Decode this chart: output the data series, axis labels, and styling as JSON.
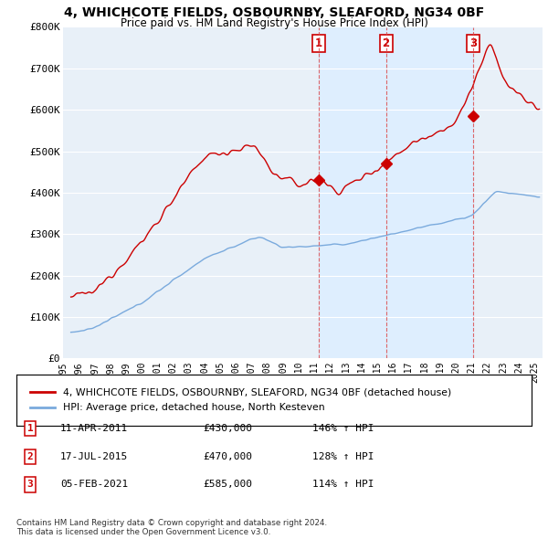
{
  "title_line1": "4, WHICHCOTE FIELDS, OSBOURNBY, SLEAFORD, NG34 0BF",
  "title_line2": "Price paid vs. HM Land Registry's House Price Index (HPI)",
  "ylim": [
    0,
    800000
  ],
  "yticks": [
    0,
    100000,
    200000,
    300000,
    400000,
    500000,
    600000,
    700000,
    800000
  ],
  "ytick_labels": [
    "£0",
    "£100K",
    "£200K",
    "£300K",
    "£400K",
    "£500K",
    "£600K",
    "£700K",
    "£800K"
  ],
  "xlim_start": 1995.3,
  "xlim_end": 2025.5,
  "sales": [
    {
      "num": 1,
      "date": "11-APR-2011",
      "price": 430000,
      "pct": "146%",
      "x": 2011.28
    },
    {
      "num": 2,
      "date": "17-JUL-2015",
      "price": 470000,
      "pct": "128%",
      "x": 2015.54
    },
    {
      "num": 3,
      "date": "05-FEB-2021",
      "price": 585000,
      "pct": "114%",
      "x": 2021.1
    }
  ],
  "legend_red": "4, WHICHCOTE FIELDS, OSBOURNBY, SLEAFORD, NG34 0BF (detached house)",
  "legend_blue": "HPI: Average price, detached house, North Kesteven",
  "footnote": "Contains HM Land Registry data © Crown copyright and database right 2024.\nThis data is licensed under the Open Government Licence v3.0.",
  "red_color": "#cc0000",
  "blue_color": "#7aaadd",
  "shade_color": "#ddeeff",
  "background_color": "#e8f0f8",
  "grid_color": "#ffffff"
}
